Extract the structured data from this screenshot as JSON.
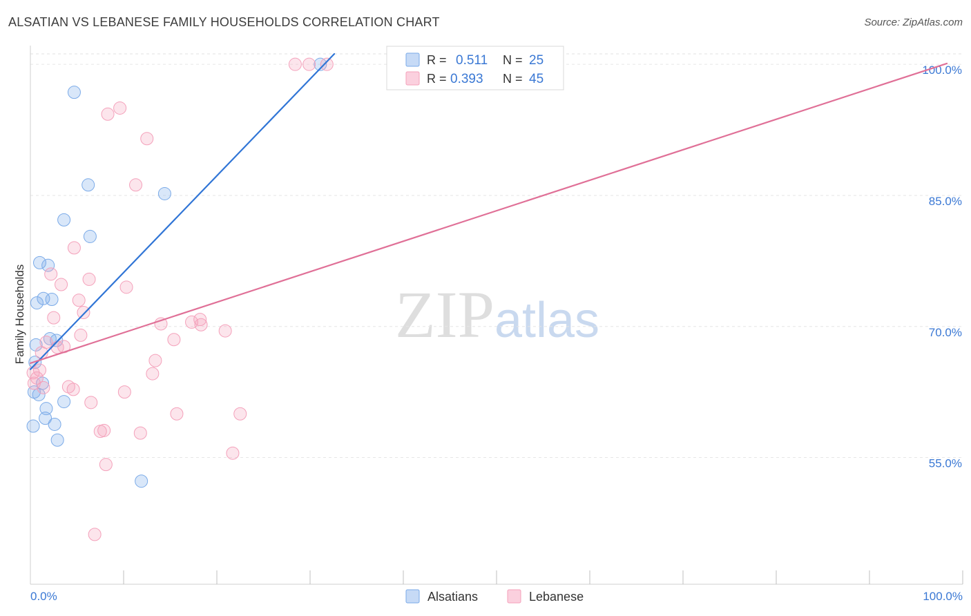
{
  "chart_data": {
    "type": "scatter",
    "title": "ALSATIAN VS LEBANESE FAMILY HOUSEHOLDS CORRELATION CHART",
    "source": "Source: ZipAtlas.com",
    "xlabel": "",
    "ylabel": "Family Households",
    "xlim": [
      0,
      100
    ],
    "ylim": [
      40.5,
      101.2
    ],
    "x_tick_labels": [
      "0.0%",
      "100.0%"
    ],
    "y_ticks": [
      55,
      70,
      85,
      100
    ],
    "y_tick_labels": [
      "55.0%",
      "70.0%",
      "85.0%",
      "100.0%"
    ],
    "watermark": {
      "part1": "ZIP",
      "part2": "atlas"
    },
    "legend_top": [
      {
        "r_label": "R =",
        "r_value": "0.511",
        "n_label": "N =",
        "n_value": "25"
      },
      {
        "r_label": "R =",
        "r_value": "0.393",
        "n_label": "N =",
        "n_value": "45"
      }
    ],
    "series": [
      {
        "name": "Alsatians",
        "color": "#7aaae8",
        "line_color": "#3075d6",
        "trend": {
          "x": [
            0,
            32.6
          ],
          "y": [
            65.1,
            101.2
          ]
        },
        "x": [
          0.3,
          0.4,
          0.5,
          0.6,
          0.7,
          0.9,
          1.0,
          1.3,
          1.4,
          1.6,
          1.7,
          1.9,
          2.1,
          2.3,
          2.6,
          2.8,
          2.9,
          3.6,
          3.6,
          4.7,
          6.2,
          6.4,
          11.9,
          14.4,
          31.1
        ],
        "y": [
          58.6,
          62.5,
          65.9,
          67.9,
          72.7,
          62.2,
          77.3,
          63.5,
          73.2,
          59.5,
          60.6,
          77.0,
          68.6,
          73.1,
          58.8,
          68.4,
          57.0,
          82.2,
          61.4,
          96.8,
          86.2,
          80.3,
          52.3,
          85.2,
          100.0
        ]
      },
      {
        "name": "Lebanese",
        "color": "#f4a0ba",
        "line_color": "#e07097",
        "trend": {
          "x": [
            0,
            98.3
          ],
          "y": [
            65.8,
            100.1
          ]
        },
        "x": [
          0.3,
          0.4,
          0.7,
          1.0,
          1.2,
          1.4,
          1.7,
          2.2,
          2.5,
          2.9,
          3.3,
          3.6,
          4.1,
          4.6,
          4.7,
          5.2,
          5.4,
          5.7,
          6.3,
          6.5,
          6.9,
          7.5,
          7.9,
          8.1,
          8.3,
          9.6,
          10.1,
          10.3,
          11.3,
          11.8,
          12.5,
          13.1,
          13.4,
          14.0,
          15.4,
          15.7,
          17.3,
          18.2,
          18.3,
          20.9,
          21.7,
          22.5,
          28.4,
          29.9,
          31.8
        ],
        "y": [
          64.7,
          63.5,
          64.1,
          65.0,
          67.0,
          63.0,
          68.2,
          76.0,
          71.0,
          67.6,
          74.8,
          67.7,
          63.1,
          62.8,
          79.0,
          73.0,
          69.0,
          71.6,
          75.4,
          61.3,
          46.2,
          58.0,
          58.1,
          54.2,
          94.3,
          95.0,
          62.5,
          74.5,
          86.2,
          57.8,
          91.5,
          64.6,
          66.1,
          70.3,
          68.5,
          60.0,
          70.5,
          70.8,
          70.2,
          69.5,
          55.5,
          60.0,
          100.0,
          100.0,
          100.0
        ]
      }
    ]
  }
}
